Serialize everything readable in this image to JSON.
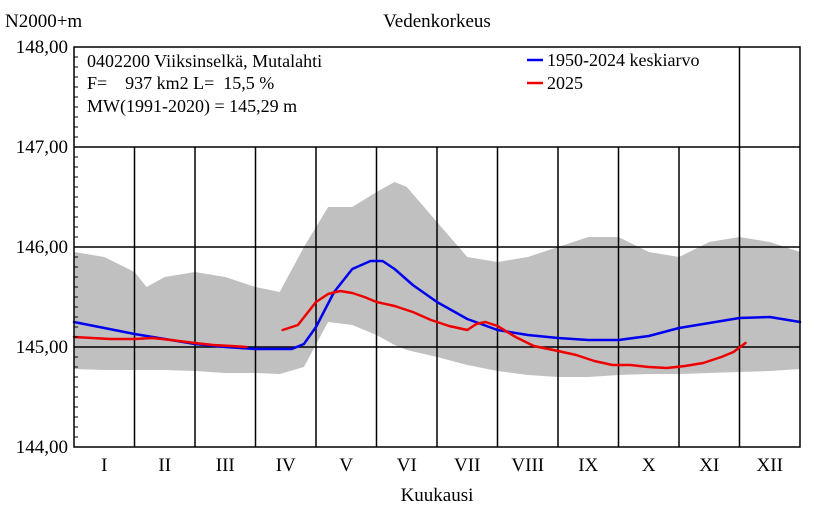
{
  "chart_data": {
    "type": "line",
    "title": "Vedenkorkeus",
    "ylabel": "N2000+m",
    "xlabel": "Kuukausi",
    "ylim": [
      144.0,
      148.0
    ],
    "xlim": [
      0,
      12
    ],
    "y_ticks": [
      "148,00",
      "147,00",
      "146,00",
      "145,00",
      "144,00"
    ],
    "y_tick_values": [
      148.0,
      147.0,
      146.0,
      145.0,
      144.0
    ],
    "months": [
      "I",
      "II",
      "III",
      "IV",
      "V",
      "VI",
      "VII",
      "VIII",
      "IX",
      "X",
      "XI",
      "XII"
    ],
    "info": {
      "station": "0402200 Viiksinselkä, Mutalahti",
      "area": "F=    937 km2 L=  15,5 %",
      "mw": "MW(1991-2020) = 145,29 m"
    },
    "range_band": {
      "x": [
        0,
        0.5,
        1,
        1.2,
        1.5,
        2,
        2.5,
        3,
        3.4,
        3.8,
        4.2,
        4.6,
        5,
        5.3,
        5.5,
        6,
        6.5,
        7,
        7.5,
        8,
        8.5,
        9,
        9.5,
        10,
        10.5,
        11,
        11.5,
        12
      ],
      "upper": [
        145.95,
        145.9,
        145.75,
        145.6,
        145.7,
        145.75,
        145.7,
        145.6,
        145.55,
        146.0,
        146.4,
        146.4,
        146.55,
        146.65,
        146.6,
        146.25,
        145.9,
        145.85,
        145.9,
        146.0,
        146.1,
        146.1,
        145.95,
        145.9,
        146.05,
        146.1,
        146.05,
        145.95
      ],
      "lower": [
        144.78,
        144.77,
        144.77,
        144.77,
        144.77,
        144.76,
        144.74,
        144.74,
        144.73,
        144.8,
        145.25,
        145.22,
        145.12,
        145.02,
        144.97,
        144.9,
        144.82,
        144.76,
        144.72,
        144.7,
        144.7,
        144.72,
        144.73,
        144.73,
        144.74,
        144.75,
        144.76,
        144.78
      ]
    },
    "series": [
      {
        "name": "1950-2024 keskiarvo",
        "color": "#0000ee",
        "x": [
          0,
          0.5,
          1,
          1.5,
          2,
          2.5,
          3,
          3.3,
          3.6,
          3.8,
          4.0,
          4.3,
          4.6,
          4.9,
          5.1,
          5.3,
          5.6,
          6.0,
          6.5,
          7.0,
          7.5,
          8.0,
          8.5,
          9.0,
          9.5,
          10.0,
          10.5,
          11.0,
          11.5,
          12.0
        ],
        "values": [
          145.25,
          145.19,
          145.13,
          145.08,
          145.03,
          145.0,
          144.98,
          144.98,
          144.98,
          145.03,
          145.2,
          145.55,
          145.78,
          145.86,
          145.86,
          145.78,
          145.62,
          145.45,
          145.28,
          145.17,
          145.12,
          145.09,
          145.07,
          145.07,
          145.11,
          145.19,
          145.24,
          145.29,
          145.3,
          145.25
        ]
      },
      {
        "name": "2025",
        "color": "#ee0000",
        "x": [
          0,
          0.3,
          0.6,
          1.0,
          1.3,
          1.6,
          2.0,
          2.3,
          2.6,
          2.85,
          3.0,
          3.2,
          3.45,
          3.7,
          4.0,
          4.2,
          4.4,
          4.6,
          4.8,
          5.0,
          5.3,
          5.6,
          5.9,
          6.2,
          6.5,
          6.65,
          6.8,
          7.0,
          7.3,
          7.6,
          8.0,
          8.3,
          8.6,
          8.9,
          9.2,
          9.5,
          9.8,
          10.1,
          10.4,
          10.7,
          10.9,
          11.1
        ],
        "values": [
          145.1,
          145.09,
          145.08,
          145.08,
          145.09,
          145.07,
          145.04,
          145.02,
          145.01,
          145.0,
          null,
          null,
          145.17,
          145.22,
          145.45,
          145.53,
          145.56,
          145.54,
          145.5,
          145.45,
          145.41,
          145.35,
          145.27,
          145.21,
          145.17,
          145.23,
          145.25,
          145.21,
          145.1,
          145.01,
          144.96,
          144.92,
          144.86,
          144.82,
          144.82,
          144.8,
          144.79,
          144.81,
          144.84,
          144.9,
          144.95,
          145.04
        ]
      }
    ]
  }
}
